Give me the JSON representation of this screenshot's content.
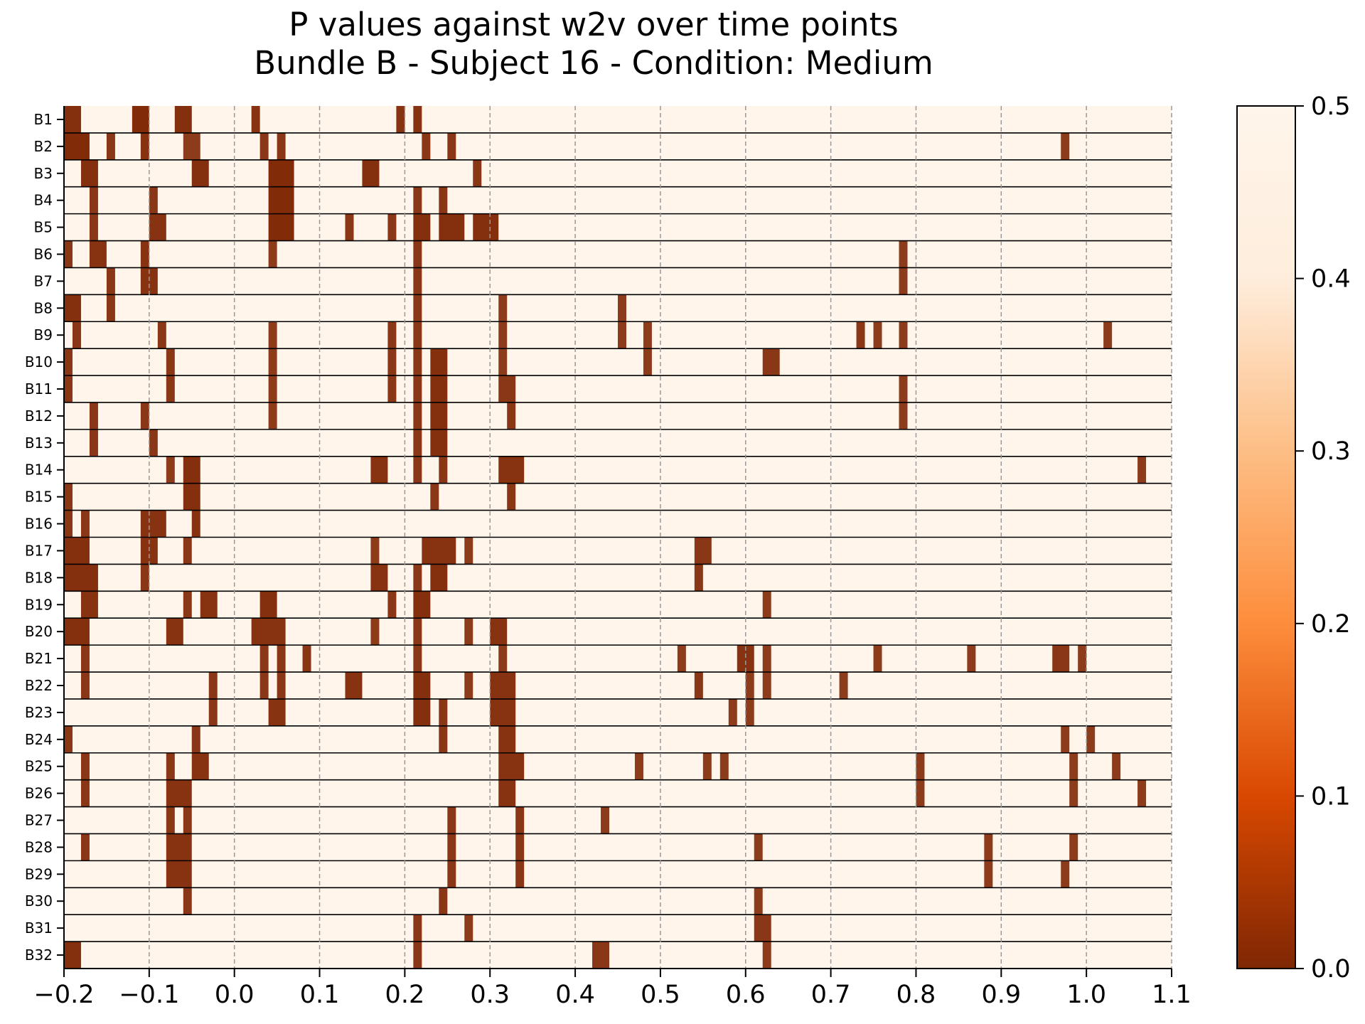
{
  "chart_data": {
    "type": "heatmap",
    "title": "P values against w2v over time points",
    "subtitle": "Bundle B - Subject 16 - Condition: Medium",
    "xlabel": "",
    "ylabel": "",
    "xlim": [
      -0.2,
      1.1
    ],
    "x_ticks": [
      "−0.2",
      "−0.1",
      "0.0",
      "0.1",
      "0.2",
      "0.3",
      "0.4",
      "0.5",
      "0.6",
      "0.7",
      "0.8",
      "0.9",
      "1.0",
      "1.1"
    ],
    "x_tick_values": [
      -0.2,
      -0.1,
      0.0,
      0.1,
      0.2,
      0.3,
      0.4,
      0.5,
      0.6,
      0.7,
      0.8,
      0.9,
      1.0,
      1.1
    ],
    "grid": "vertical dashed at x ticks",
    "colormap": "Oranges_r",
    "color_low": "#7f2704",
    "color_high": "#fff5eb",
    "colorbar": {
      "range": [
        0.0,
        0.5
      ],
      "ticks": [
        "0.0",
        "0.1",
        "0.2",
        "0.3",
        "0.4",
        "0.5"
      ],
      "tick_values": [
        0.0,
        0.1,
        0.2,
        0.3,
        0.4,
        0.5
      ]
    },
    "background_p": 0.5,
    "cell_width": 0.01,
    "rows": [
      "B1",
      "B2",
      "B3",
      "B4",
      "B5",
      "B6",
      "B7",
      "B8",
      "B9",
      "B10",
      "B11",
      "B12",
      "B13",
      "B14",
      "B15",
      "B16",
      "B17",
      "B18",
      "B19",
      "B20",
      "B21",
      "B22",
      "B23",
      "B24",
      "B25",
      "B26",
      "B27",
      "B28",
      "B29",
      "B30",
      "B31",
      "B32"
    ],
    "significant": [
      [
        [
          -0.2,
          -0.18,
          0.02
        ],
        [
          -0.12,
          -0.1,
          0.01
        ],
        [
          -0.07,
          -0.05,
          0.02
        ],
        [
          0.02,
          0.03,
          0.03
        ],
        [
          0.19,
          0.2,
          0.03
        ],
        [
          0.21,
          0.22,
          0.03
        ]
      ],
      [
        [
          -0.2,
          -0.17,
          0.01
        ],
        [
          -0.15,
          -0.14,
          0.04
        ],
        [
          -0.11,
          -0.1,
          0.03
        ],
        [
          -0.06,
          -0.04,
          0.05
        ],
        [
          0.03,
          0.04,
          0.04
        ],
        [
          0.05,
          0.06,
          0.04
        ],
        [
          0.22,
          0.23,
          0.04
        ],
        [
          0.25,
          0.26,
          0.04
        ],
        [
          0.97,
          0.98,
          0.05
        ]
      ],
      [
        [
          -0.18,
          -0.16,
          0.02
        ],
        [
          -0.05,
          -0.03,
          0.02
        ],
        [
          0.04,
          0.07,
          0.01
        ],
        [
          0.15,
          0.17,
          0.02
        ],
        [
          0.28,
          0.29,
          0.04
        ]
      ],
      [
        [
          -0.17,
          -0.16,
          0.04
        ],
        [
          -0.1,
          -0.09,
          0.04
        ],
        [
          0.04,
          0.07,
          0.01
        ],
        [
          0.21,
          0.22,
          0.04
        ],
        [
          0.24,
          0.25,
          0.04
        ]
      ],
      [
        [
          -0.17,
          -0.16,
          0.04
        ],
        [
          -0.1,
          -0.08,
          0.03
        ],
        [
          0.04,
          0.07,
          0.01
        ],
        [
          0.13,
          0.14,
          0.04
        ],
        [
          0.18,
          0.19,
          0.04
        ],
        [
          0.21,
          0.23,
          0.02
        ],
        [
          0.24,
          0.27,
          0.02
        ],
        [
          0.28,
          0.31,
          0.02
        ]
      ],
      [
        [
          -0.2,
          -0.19,
          0.04
        ],
        [
          -0.17,
          -0.15,
          0.03
        ],
        [
          -0.11,
          -0.1,
          0.03
        ],
        [
          0.04,
          0.05,
          0.05
        ],
        [
          0.21,
          0.22,
          0.04
        ],
        [
          0.78,
          0.79,
          0.05
        ]
      ],
      [
        [
          -0.15,
          -0.14,
          0.04
        ],
        [
          -0.11,
          -0.09,
          0.03
        ],
        [
          0.21,
          0.22,
          0.04
        ],
        [
          0.78,
          0.79,
          0.05
        ]
      ],
      [
        [
          -0.2,
          -0.18,
          0.02
        ],
        [
          -0.15,
          -0.14,
          0.04
        ],
        [
          0.21,
          0.22,
          0.04
        ],
        [
          0.31,
          0.32,
          0.05
        ],
        [
          0.45,
          0.46,
          0.05
        ]
      ],
      [
        [
          -0.19,
          -0.18,
          0.04
        ],
        [
          -0.09,
          -0.08,
          0.04
        ],
        [
          0.04,
          0.05,
          0.05
        ],
        [
          0.18,
          0.19,
          0.04
        ],
        [
          0.21,
          0.22,
          0.04
        ],
        [
          0.31,
          0.32,
          0.05
        ],
        [
          0.45,
          0.46,
          0.05
        ],
        [
          0.48,
          0.49,
          0.05
        ],
        [
          0.73,
          0.74,
          0.04
        ],
        [
          0.75,
          0.76,
          0.05
        ],
        [
          0.78,
          0.79,
          0.05
        ],
        [
          1.02,
          1.03,
          0.05
        ]
      ],
      [
        [
          -0.2,
          -0.19,
          0.04
        ],
        [
          -0.08,
          -0.07,
          0.04
        ],
        [
          0.04,
          0.05,
          0.05
        ],
        [
          0.18,
          0.19,
          0.04
        ],
        [
          0.21,
          0.22,
          0.04
        ],
        [
          0.23,
          0.25,
          0.02
        ],
        [
          0.31,
          0.32,
          0.05
        ],
        [
          0.48,
          0.49,
          0.05
        ],
        [
          0.62,
          0.64,
          0.04
        ]
      ],
      [
        [
          -0.2,
          -0.19,
          0.04
        ],
        [
          -0.08,
          -0.07,
          0.04
        ],
        [
          0.04,
          0.05,
          0.05
        ],
        [
          0.18,
          0.19,
          0.04
        ],
        [
          0.21,
          0.22,
          0.04
        ],
        [
          0.23,
          0.25,
          0.02
        ],
        [
          0.31,
          0.33,
          0.04
        ],
        [
          0.78,
          0.79,
          0.05
        ]
      ],
      [
        [
          -0.17,
          -0.16,
          0.04
        ],
        [
          -0.11,
          -0.1,
          0.04
        ],
        [
          0.04,
          0.05,
          0.05
        ],
        [
          0.21,
          0.22,
          0.04
        ],
        [
          0.23,
          0.25,
          0.02
        ],
        [
          0.32,
          0.33,
          0.04
        ],
        [
          0.78,
          0.79,
          0.05
        ]
      ],
      [
        [
          -0.17,
          -0.16,
          0.04
        ],
        [
          -0.1,
          -0.09,
          0.04
        ],
        [
          0.21,
          0.22,
          0.04
        ],
        [
          0.23,
          0.25,
          0.02
        ]
      ],
      [
        [
          -0.08,
          -0.07,
          0.05
        ],
        [
          -0.06,
          -0.04,
          0.02
        ],
        [
          0.16,
          0.18,
          0.03
        ],
        [
          0.21,
          0.22,
          0.04
        ],
        [
          0.24,
          0.25,
          0.04
        ],
        [
          0.31,
          0.34,
          0.03
        ],
        [
          1.06,
          1.07,
          0.05
        ]
      ],
      [
        [
          -0.2,
          -0.19,
          0.04
        ],
        [
          -0.06,
          -0.04,
          0.02
        ],
        [
          0.23,
          0.24,
          0.04
        ],
        [
          0.32,
          0.33,
          0.04
        ]
      ],
      [
        [
          -0.2,
          -0.19,
          0.04
        ],
        [
          -0.18,
          -0.17,
          0.04
        ],
        [
          -0.11,
          -0.08,
          0.03
        ],
        [
          -0.05,
          -0.04,
          0.03
        ]
      ],
      [
        [
          -0.2,
          -0.17,
          0.02
        ],
        [
          -0.11,
          -0.09,
          0.03
        ],
        [
          -0.06,
          -0.05,
          0.04
        ],
        [
          0.16,
          0.17,
          0.05
        ],
        [
          0.22,
          0.26,
          0.03
        ],
        [
          0.27,
          0.28,
          0.05
        ],
        [
          0.54,
          0.56,
          0.04
        ]
      ],
      [
        [
          -0.2,
          -0.16,
          0.02
        ],
        [
          -0.11,
          -0.1,
          0.04
        ],
        [
          0.16,
          0.18,
          0.03
        ],
        [
          0.21,
          0.22,
          0.04
        ],
        [
          0.23,
          0.25,
          0.02
        ],
        [
          0.54,
          0.55,
          0.04
        ]
      ],
      [
        [
          -0.18,
          -0.16,
          0.03
        ],
        [
          -0.06,
          -0.05,
          0.04
        ],
        [
          -0.04,
          -0.02,
          0.03
        ],
        [
          0.03,
          0.05,
          0.02
        ],
        [
          0.18,
          0.19,
          0.04
        ],
        [
          0.21,
          0.23,
          0.02
        ],
        [
          0.62,
          0.63,
          0.05
        ]
      ],
      [
        [
          -0.2,
          -0.17,
          0.02
        ],
        [
          -0.08,
          -0.06,
          0.03
        ],
        [
          0.02,
          0.06,
          0.03
        ],
        [
          0.16,
          0.17,
          0.05
        ],
        [
          0.21,
          0.22,
          0.04
        ],
        [
          0.27,
          0.28,
          0.05
        ],
        [
          0.3,
          0.32,
          0.03
        ]
      ],
      [
        [
          -0.18,
          -0.17,
          0.04
        ],
        [
          0.03,
          0.04,
          0.04
        ],
        [
          0.05,
          0.06,
          0.04
        ],
        [
          0.08,
          0.09,
          0.04
        ],
        [
          0.21,
          0.22,
          0.04
        ],
        [
          0.31,
          0.32,
          0.05
        ],
        [
          0.52,
          0.53,
          0.05
        ],
        [
          0.59,
          0.61,
          0.03
        ],
        [
          0.62,
          0.63,
          0.05
        ],
        [
          0.75,
          0.76,
          0.05
        ],
        [
          0.86,
          0.87,
          0.05
        ],
        [
          0.96,
          0.98,
          0.04
        ],
        [
          0.99,
          1.0,
          0.05
        ]
      ],
      [
        [
          -0.18,
          -0.17,
          0.04
        ],
        [
          -0.03,
          -0.02,
          0.04
        ],
        [
          0.03,
          0.04,
          0.04
        ],
        [
          0.05,
          0.06,
          0.04
        ],
        [
          0.13,
          0.15,
          0.03
        ],
        [
          0.21,
          0.23,
          0.02
        ],
        [
          0.27,
          0.28,
          0.05
        ],
        [
          0.3,
          0.33,
          0.03
        ],
        [
          0.54,
          0.55,
          0.04
        ],
        [
          0.6,
          0.61,
          0.05
        ],
        [
          0.62,
          0.63,
          0.05
        ],
        [
          0.71,
          0.72,
          0.05
        ]
      ],
      [
        [
          -0.03,
          -0.02,
          0.04
        ],
        [
          0.04,
          0.06,
          0.03
        ],
        [
          0.21,
          0.23,
          0.02
        ],
        [
          0.24,
          0.25,
          0.04
        ],
        [
          0.3,
          0.33,
          0.03
        ],
        [
          0.58,
          0.59,
          0.05
        ],
        [
          0.6,
          0.61,
          0.05
        ]
      ],
      [
        [
          -0.2,
          -0.19,
          0.04
        ],
        [
          -0.05,
          -0.04,
          0.04
        ],
        [
          0.24,
          0.25,
          0.04
        ],
        [
          0.31,
          0.33,
          0.03
        ],
        [
          0.97,
          0.98,
          0.05
        ],
        [
          1.0,
          1.01,
          0.05
        ]
      ],
      [
        [
          -0.18,
          -0.17,
          0.04
        ],
        [
          -0.08,
          -0.07,
          0.04
        ],
        [
          -0.05,
          -0.03,
          0.03
        ],
        [
          0.31,
          0.34,
          0.03
        ],
        [
          0.47,
          0.48,
          0.05
        ],
        [
          0.55,
          0.56,
          0.05
        ],
        [
          0.57,
          0.58,
          0.05
        ],
        [
          0.8,
          0.81,
          0.05
        ],
        [
          0.98,
          0.99,
          0.05
        ],
        [
          1.03,
          1.04,
          0.05
        ]
      ],
      [
        [
          -0.18,
          -0.17,
          0.04
        ],
        [
          -0.08,
          -0.05,
          0.03
        ],
        [
          0.31,
          0.33,
          0.03
        ],
        [
          0.8,
          0.81,
          0.05
        ],
        [
          0.98,
          0.99,
          0.05
        ],
        [
          1.06,
          1.07,
          0.05
        ]
      ],
      [
        [
          -0.08,
          -0.07,
          0.04
        ],
        [
          -0.06,
          -0.05,
          0.04
        ],
        [
          0.25,
          0.26,
          0.04
        ],
        [
          0.33,
          0.34,
          0.04
        ],
        [
          0.43,
          0.44,
          0.05
        ]
      ],
      [
        [
          -0.18,
          -0.17,
          0.04
        ],
        [
          -0.08,
          -0.05,
          0.03
        ],
        [
          0.25,
          0.26,
          0.04
        ],
        [
          0.33,
          0.34,
          0.04
        ],
        [
          0.61,
          0.62,
          0.05
        ],
        [
          0.88,
          0.89,
          0.05
        ],
        [
          0.98,
          0.99,
          0.05
        ]
      ],
      [
        [
          -0.08,
          -0.05,
          0.03
        ],
        [
          0.25,
          0.26,
          0.04
        ],
        [
          0.33,
          0.34,
          0.04
        ],
        [
          0.88,
          0.89,
          0.05
        ],
        [
          0.97,
          0.98,
          0.05
        ]
      ],
      [
        [
          -0.06,
          -0.05,
          0.04
        ],
        [
          0.24,
          0.25,
          0.04
        ],
        [
          0.61,
          0.62,
          0.05
        ]
      ],
      [
        [
          0.21,
          0.22,
          0.04
        ],
        [
          0.27,
          0.28,
          0.05
        ],
        [
          0.61,
          0.63,
          0.04
        ]
      ],
      [
        [
          -0.2,
          -0.18,
          0.02
        ],
        [
          0.21,
          0.22,
          0.04
        ],
        [
          0.42,
          0.44,
          0.04
        ],
        [
          0.62,
          0.63,
          0.05
        ]
      ]
    ]
  }
}
